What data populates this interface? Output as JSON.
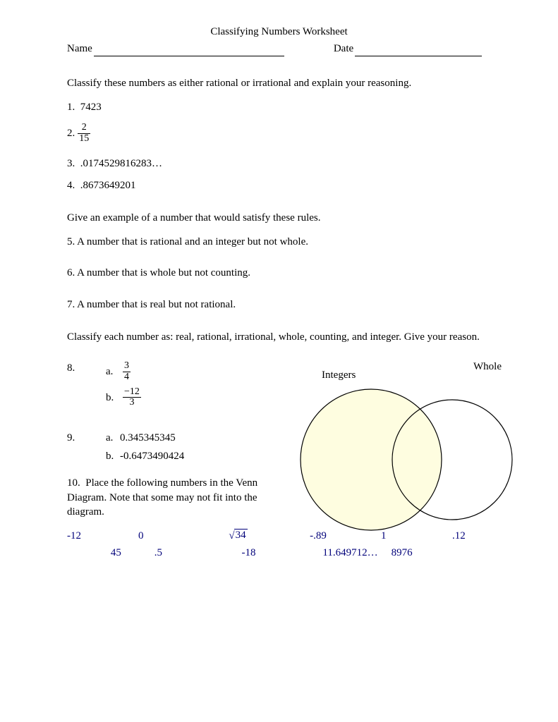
{
  "title": "Classifying Numbers Worksheet",
  "name_label": "Name",
  "date_label": "Date",
  "instr1": "Classify these numbers as either rational or irrational and explain your reasoning.",
  "q1": {
    "num": "1.",
    "text": "7423"
  },
  "q2": {
    "num": "2.",
    "frac_num": "2",
    "frac_den": "15"
  },
  "q3": {
    "num": "3.",
    "text": ".0174529816283…"
  },
  "q4": {
    "num": "4.",
    "text": ".8673649201"
  },
  "instr2": "Give an example of a number that would satisfy these rules.",
  "q5": "5.  A number that is rational and an integer but not whole.",
  "q6": "6.  A number that is whole but not counting.",
  "q7": "7.  A number that is real but not rational.",
  "instr3": "Classify each number as: real, rational, irrational, whole, counting, and integer. Give your reason.",
  "q8": {
    "num": "8.",
    "a": {
      "label": "a.",
      "frac_num": "3",
      "frac_den": "4"
    },
    "b": {
      "label": "b.",
      "frac_num": "−12",
      "frac_den": "3"
    }
  },
  "q9": {
    "num": "9.",
    "a": {
      "label": "a.",
      "text": "0.345345345"
    },
    "b": {
      "label": "b.",
      "text": "-0.6473490424"
    }
  },
  "q10_label": "10.",
  "q10_text": "Place the following numbers in the Venn Diagram.  Note that some may not fit into the diagram.",
  "venn": {
    "label_left": "Integers",
    "label_right": "Whole",
    "circle_left_fill": "#fefde0",
    "circle_left_stroke": "#000000",
    "circle_right_fill": "#ffffff",
    "circle_right_stroke": "#000000",
    "stroke_width": 1.2
  },
  "numbers": {
    "row1": [
      "-12",
      "0",
      "√34_SQRT",
      "-.89",
      "1",
      ".12"
    ],
    "row2": [
      "45",
      ".5",
      "-18",
      "11.649712…",
      "8976"
    ],
    "color": "#00007a"
  },
  "row1_widths": [
    110,
    140,
    125,
    110,
    110,
    60
  ],
  "row2_offsets": [
    70,
    140,
    130,
    110,
    160
  ]
}
